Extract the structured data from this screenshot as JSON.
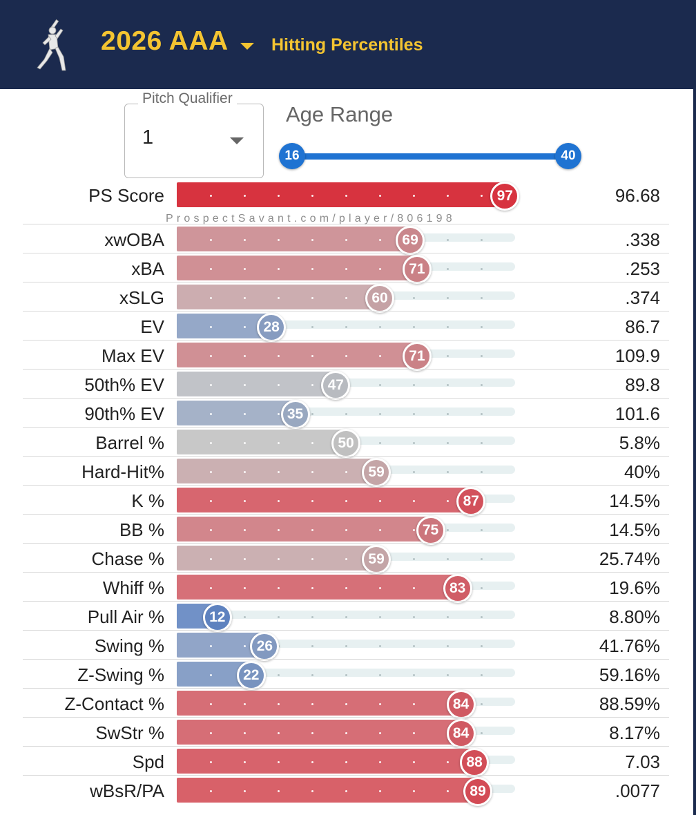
{
  "header": {
    "season": "2026 AAA",
    "subtitle": "Hitting Percentiles",
    "icon": "batter-silhouette-icon",
    "bg_color": "#1b2a4e",
    "accent_color": "#f4c431"
  },
  "controls": {
    "pitch_qualifier_label": "Pitch Qualifier",
    "pitch_qualifier_value": "1",
    "age_range_label": "Age Range",
    "age_min": "16",
    "age_max": "40"
  },
  "watermark": "ProspectSavant.com/player/806198",
  "rows": [
    {
      "label": "PS Score",
      "percentile": 97,
      "value": "96.68"
    },
    {
      "label": "xwOBA",
      "percentile": 69,
      "value": ".338"
    },
    {
      "label": "xBA",
      "percentile": 71,
      "value": ".253"
    },
    {
      "label": "xSLG",
      "percentile": 60,
      "value": ".374"
    },
    {
      "label": "EV",
      "percentile": 28,
      "value": "86.7"
    },
    {
      "label": "Max EV",
      "percentile": 71,
      "value": "109.9"
    },
    {
      "label": "50th% EV",
      "percentile": 47,
      "value": "89.8"
    },
    {
      "label": "90th% EV",
      "percentile": 35,
      "value": "101.6"
    },
    {
      "label": "Barrel %",
      "percentile": 50,
      "value": "5.8%"
    },
    {
      "label": "Hard-Hit%",
      "percentile": 59,
      "value": "40%"
    },
    {
      "label": "K %",
      "percentile": 87,
      "value": "14.5%"
    },
    {
      "label": "BB %",
      "percentile": 75,
      "value": "14.5%"
    },
    {
      "label": "Chase %",
      "percentile": 59,
      "value": "25.74%"
    },
    {
      "label": "Whiff %",
      "percentile": 83,
      "value": "19.6%"
    },
    {
      "label": "Pull Air %",
      "percentile": 12,
      "value": "8.80%"
    },
    {
      "label": "Swing %",
      "percentile": 26,
      "value": "41.76%"
    },
    {
      "label": "Z-Swing %",
      "percentile": 22,
      "value": "59.16%"
    },
    {
      "label": "Z-Contact %",
      "percentile": 84,
      "value": "88.59%"
    },
    {
      "label": "SwStr %",
      "percentile": 84,
      "value": "8.17%"
    },
    {
      "label": "Spd",
      "percentile": 88,
      "value": "7.03"
    },
    {
      "label": "wBsR/PA",
      "percentile": 89,
      "value": ".0077"
    }
  ],
  "color_scale": {
    "low": "#3f6fbf",
    "mid": "#c0c0c0",
    "high": "#d82a37"
  }
}
